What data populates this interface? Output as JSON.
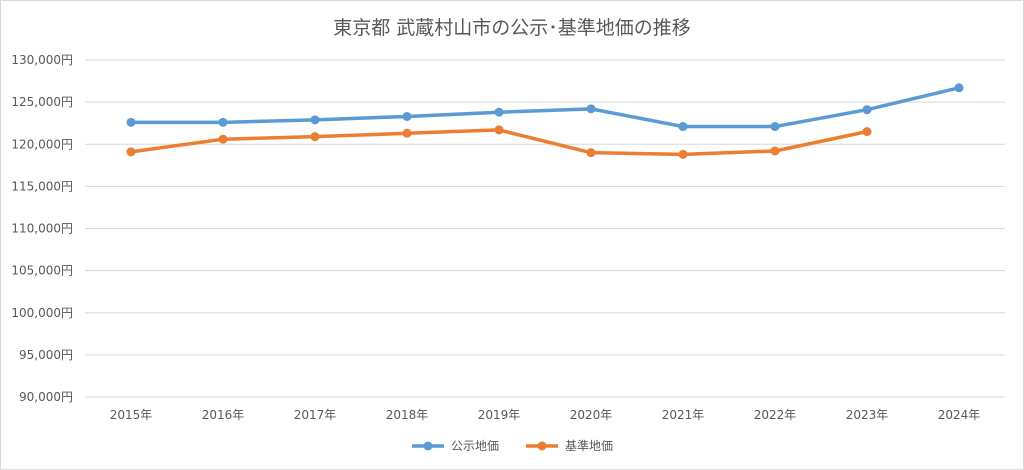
{
  "chart_data": {
    "type": "line",
    "title": "東京都 武蔵村山市の公示･基準地価の推移",
    "categories": [
      "2015年",
      "2016年",
      "2017年",
      "2018年",
      "2019年",
      "2020年",
      "2021年",
      "2022年",
      "2023年",
      "2024年"
    ],
    "series": [
      {
        "name": "公示地価",
        "color": "#5b9bd5",
        "values": [
          122600,
          122600,
          122900,
          123300,
          123800,
          124200,
          122100,
          122100,
          124100,
          126700
        ]
      },
      {
        "name": "基準地価",
        "color": "#ed7d31",
        "values": [
          119100,
          120600,
          120900,
          121300,
          121700,
          119000,
          118800,
          119200,
          121500,
          null
        ]
      }
    ],
    "ylim": [
      90000,
      130000
    ],
    "yticks": [
      "90,000円",
      "95,000円",
      "100,000円",
      "105,000円",
      "110,000円",
      "115,000円",
      "120,000円",
      "125,000円",
      "130,000円"
    ],
    "grid": true,
    "legend": "bottom"
  }
}
